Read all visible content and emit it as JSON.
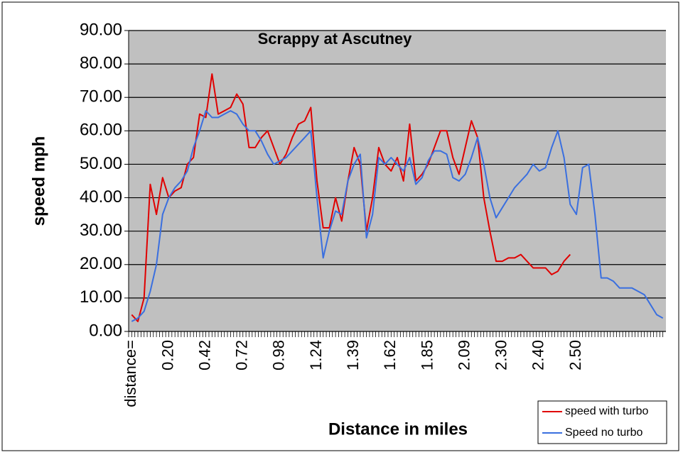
{
  "chart_data": {
    "type": "line",
    "title": "Scrappy at Ascutney",
    "x_label": "Distance in miles",
    "y_label": "speed mph",
    "categories": [
      "distance=",
      null,
      null,
      null,
      null,
      null,
      "0.20",
      null,
      null,
      null,
      null,
      null,
      "0.42",
      null,
      null,
      null,
      null,
      null,
      "0.72",
      null,
      null,
      null,
      null,
      null,
      "0.98",
      null,
      null,
      null,
      null,
      null,
      "1.24",
      null,
      null,
      null,
      null,
      null,
      "1.39",
      null,
      null,
      null,
      null,
      null,
      "1.62",
      null,
      null,
      null,
      null,
      null,
      "1.85",
      null,
      null,
      null,
      null,
      null,
      "2.09",
      null,
      null,
      null,
      null,
      null,
      "2.30",
      null,
      null,
      null,
      null,
      null,
      "2.40",
      null,
      null,
      null,
      null,
      null,
      "2.50",
      null,
      null,
      null,
      null,
      null,
      null,
      null,
      null,
      null,
      null,
      null,
      null,
      null,
      null
    ],
    "series": [
      {
        "name": "speed with turbo",
        "color": "#e00000",
        "values": [
          5,
          3,
          10,
          44,
          35,
          46,
          40,
          42,
          43,
          50,
          52,
          65,
          64,
          77,
          65,
          66,
          67,
          71,
          68,
          55,
          55,
          58,
          60,
          55,
          50,
          53,
          58,
          62,
          63,
          67,
          45,
          31,
          31,
          40,
          33,
          45,
          55,
          50,
          30,
          40,
          55,
          50,
          48,
          52,
          45,
          62,
          45,
          47,
          50,
          55,
          60,
          60,
          52,
          47,
          55,
          63,
          58,
          40,
          30,
          21,
          21,
          22,
          22,
          23,
          21,
          19,
          19,
          19,
          17,
          18,
          21,
          23,
          null,
          null,
          null,
          null,
          null,
          null,
          null,
          null,
          null,
          null,
          null,
          null,
          null,
          null,
          null
        ]
      },
      {
        "name": "Speed no turbo",
        "color": "#3a6fdf",
        "values": [
          3,
          4,
          6,
          12,
          20,
          35,
          40,
          43,
          45,
          48,
          55,
          60,
          66,
          64,
          64,
          65,
          66,
          65,
          62,
          60,
          60,
          57,
          53,
          50,
          51,
          52,
          54,
          56,
          58,
          60,
          40,
          22,
          30,
          36,
          35,
          45,
          50,
          53,
          28,
          35,
          52,
          50,
          52,
          50,
          48,
          52,
          44,
          46,
          51,
          54,
          54,
          53,
          46,
          45,
          47,
          52,
          58,
          50,
          40,
          34,
          37,
          40,
          43,
          45,
          47,
          50,
          48,
          49,
          55,
          60,
          52,
          38,
          35,
          49,
          50,
          35,
          16,
          16,
          15,
          13,
          13,
          13,
          12,
          11,
          8,
          5,
          4
        ]
      }
    ],
    "ylim": [
      0,
      90
    ],
    "yticks": [
      {
        "value": 0,
        "label": "0.00"
      },
      {
        "value": 10,
        "label": "10.00"
      },
      {
        "value": 20,
        "label": "20.00"
      },
      {
        "value": 30,
        "label": "30.00"
      },
      {
        "value": 40,
        "label": "40.00"
      },
      {
        "value": 50,
        "label": "50.00"
      },
      {
        "value": 60,
        "label": "60.00"
      },
      {
        "value": 70,
        "label": "70.00"
      },
      {
        "value": 80,
        "label": "80.00"
      },
      {
        "value": 90,
        "label": "90.00"
      }
    ],
    "grid": true,
    "plot_background": "#c0c0c0",
    "legend": "lower right"
  }
}
